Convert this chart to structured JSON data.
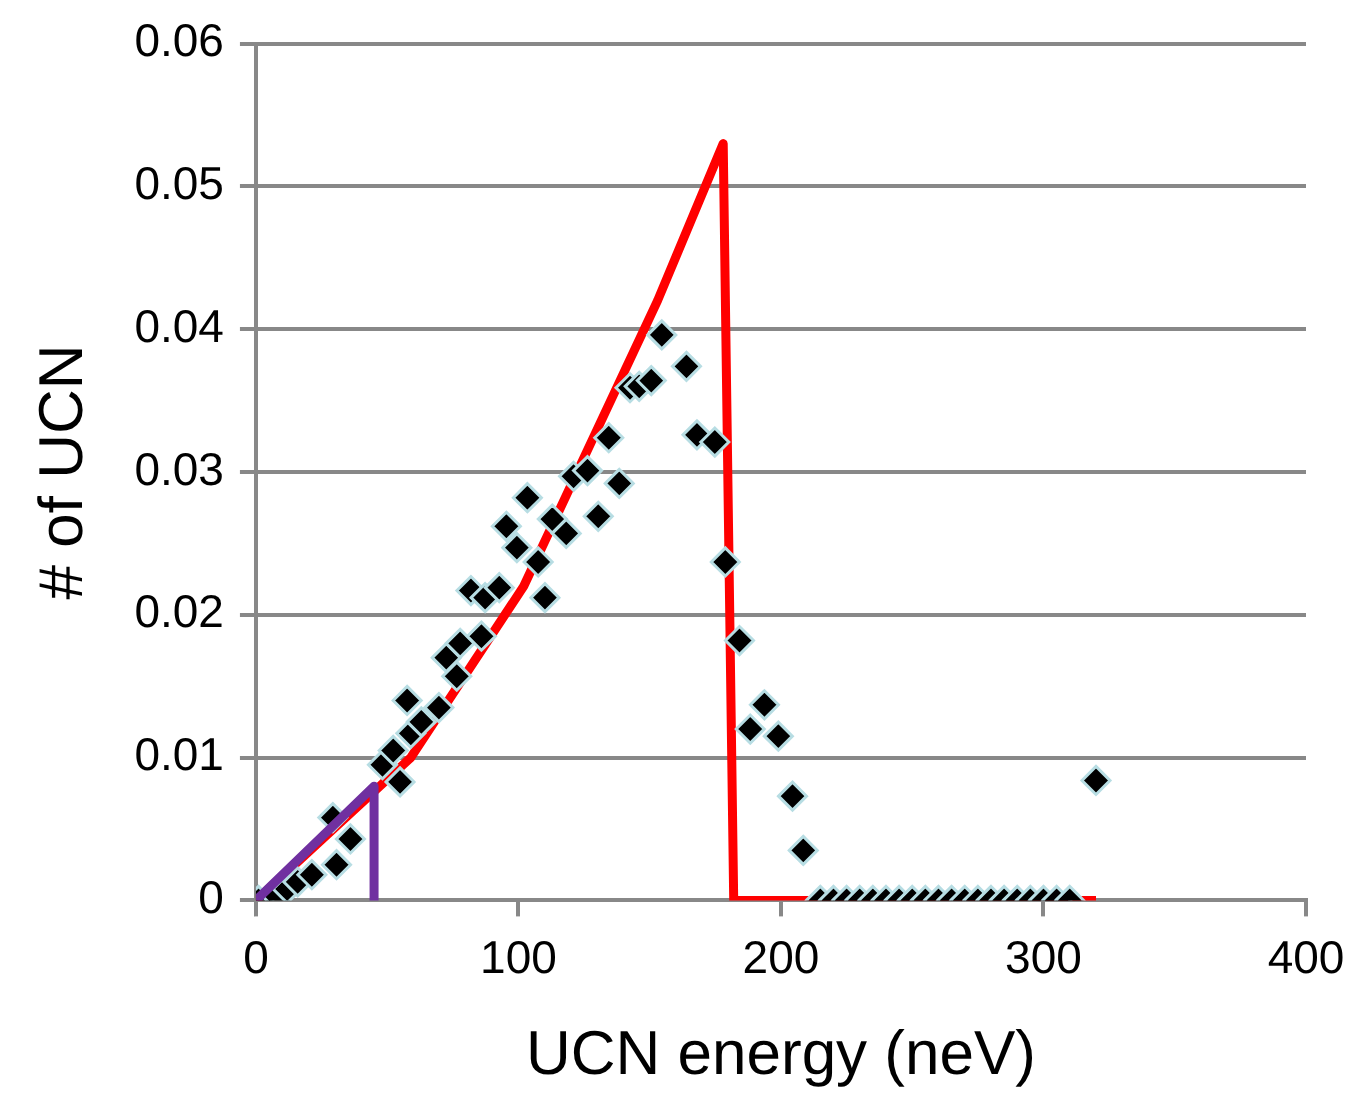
{
  "chart_data": {
    "type": "scatter",
    "xlabel": "UCN energy (neV)",
    "ylabel": "# of UCN",
    "xlim": [
      0,
      400
    ],
    "xticks": [
      0,
      100,
      200,
      300,
      400
    ],
    "ylim": [
      0,
      0.06
    ],
    "yticks": [
      0,
      0.01,
      0.02,
      0.03,
      0.04,
      0.05,
      0.06
    ],
    "grid": "y",
    "legend": false,
    "series": [
      {
        "type": "line",
        "color": "#ff0000",
        "marker": "none",
        "x": [
          0,
          59,
          102,
          153,
          178,
          182,
          320
        ],
        "values": [
          0,
          0.01,
          0.022,
          0.042,
          0.053,
          0,
          0
        ]
      },
      {
        "type": "scatter",
        "color": "#000000",
        "marker": "diamond",
        "x": [
          1,
          7.8,
          11.9,
          15.9,
          21.3,
          29.3,
          30.7,
          36,
          48.2,
          52.3,
          54.9,
          59,
          63,
          57.6,
          69.7,
          72.5,
          76.5,
          77.8,
          85.9,
          81.9,
          87.3,
          92.7,
          110.1,
          95.4,
          99.4,
          107.5,
          103.4,
          112.9,
          118.2,
          121,
          126.3,
          130.4,
          134.4,
          138.4,
          142.5,
          146,
          150.6,
          154.6,
          164,
          168,
          174.8,
          178.8,
          184.2,
          188.3,
          193.7,
          199,
          204.4,
          208.5,
          215,
          220,
          225,
          230,
          235,
          240,
          245,
          250,
          255,
          260,
          265,
          270,
          275,
          280,
          285,
          290,
          295,
          300,
          305,
          310,
          320
        ],
        "values": [
          0,
          0.0003,
          0.0008,
          0.0013,
          0.0018,
          0.0058,
          0.0025,
          0.0043,
          0.0095,
          0.0105,
          0.0083,
          0.0117,
          0.0125,
          0.014,
          0.0135,
          0.017,
          0.0157,
          0.018,
          0.0185,
          0.0217,
          0.0212,
          0.0219,
          0.0212,
          0.0262,
          0.0247,
          0.0237,
          0.0282,
          0.0267,
          0.0257,
          0.0297,
          0.0301,
          0.0269,
          0.0324,
          0.0292,
          0.0359,
          0.036,
          0.0364,
          0.0396,
          0.0374,
          0.0326,
          0.0321,
          0.0237,
          0.0182,
          0.012,
          0.0137,
          0.0115,
          0.0073,
          0.0035,
          0,
          0,
          0,
          0,
          0,
          0,
          0,
          0,
          0,
          0,
          0,
          0,
          0,
          0,
          0,
          0,
          0,
          0,
          0,
          0,
          0.0084
        ]
      },
      {
        "type": "line",
        "color": "#7030a0",
        "marker": "none",
        "x": [
          0,
          45,
          45
        ],
        "values": [
          0,
          0.008,
          0
        ]
      }
    ]
  }
}
